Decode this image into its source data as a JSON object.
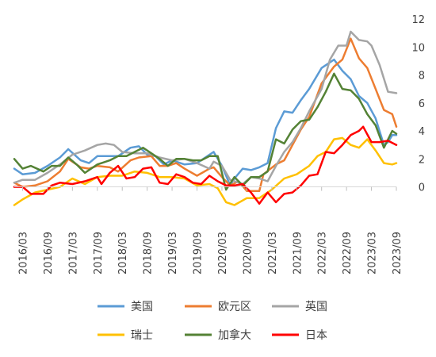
{
  "chart_data": {
    "type": "line",
    "title": "",
    "xlabel": "",
    "ylabel": "",
    "y_axis_side": "right",
    "grid": false,
    "legend_position": "bottom",
    "ylim": [
      -1.5,
      12
    ],
    "yticks": [
      "0",
      "2",
      "4",
      "6",
      "8",
      "10",
      "12"
    ],
    "xtick_labels": [
      "2016/03",
      "2016/09",
      "2017/03",
      "2017/09",
      "2018/03",
      "2018/09",
      "2019/03",
      "2019/09",
      "2020/03",
      "2020/09",
      "2021/03",
      "2021/09",
      "2022/03",
      "2022/09",
      "2023/03",
      "2023/09"
    ],
    "x_start": "2016/01",
    "x_end": "2023/09",
    "series": [
      {
        "name": "美国",
        "color": "#5B9BD5",
        "points": [
          [
            "2016/01",
            1.3
          ],
          [
            "2016/03",
            0.9
          ],
          [
            "2016/06",
            1.0
          ],
          [
            "2016/09",
            1.5
          ],
          [
            "2016/12",
            2.1
          ],
          [
            "2017/02",
            2.7
          ],
          [
            "2017/05",
            1.9
          ],
          [
            "2017/07",
            1.7
          ],
          [
            "2017/09",
            2.2
          ],
          [
            "2017/11",
            2.2
          ],
          [
            "2018/02",
            2.2
          ],
          [
            "2018/05",
            2.8
          ],
          [
            "2018/07",
            2.9
          ],
          [
            "2018/09",
            2.3
          ],
          [
            "2018/11",
            2.2
          ],
          [
            "2019/01",
            1.6
          ],
          [
            "2019/03",
            1.9
          ],
          [
            "2019/06",
            1.6
          ],
          [
            "2019/09",
            1.7
          ],
          [
            "2019/12",
            2.3
          ],
          [
            "2020/01",
            2.5
          ],
          [
            "2020/03",
            1.5
          ],
          [
            "2020/05",
            0.1
          ],
          [
            "2020/06",
            0.6
          ],
          [
            "2020/08",
            1.3
          ],
          [
            "2020/10",
            1.2
          ],
          [
            "2020/12",
            1.4
          ],
          [
            "2021/02",
            1.7
          ],
          [
            "2021/04",
            4.2
          ],
          [
            "2021/06",
            5.4
          ],
          [
            "2021/08",
            5.3
          ],
          [
            "2021/10",
            6.2
          ],
          [
            "2021/12",
            7.0
          ],
          [
            "2022/03",
            8.5
          ],
          [
            "2022/06",
            9.1
          ],
          [
            "2022/08",
            8.3
          ],
          [
            "2022/10",
            7.7
          ],
          [
            "2022/12",
            6.5
          ],
          [
            "2023/02",
            6.0
          ],
          [
            "2023/04",
            4.9
          ],
          [
            "2023/06",
            3.0
          ],
          [
            "2023/07",
            3.2
          ],
          [
            "2023/08",
            3.7
          ],
          [
            "2023/09",
            3.7
          ]
        ]
      },
      {
        "name": "欧元区",
        "color": "#ED7D31",
        "points": [
          [
            "2016/01",
            0.3
          ],
          [
            "2016/03",
            0.0
          ],
          [
            "2016/06",
            0.1
          ],
          [
            "2016/09",
            0.4
          ],
          [
            "2016/12",
            1.1
          ],
          [
            "2017/02",
            2.0
          ],
          [
            "2017/05",
            1.4
          ],
          [
            "2017/07",
            1.3
          ],
          [
            "2017/09",
            1.5
          ],
          [
            "2017/12",
            1.4
          ],
          [
            "2018/02",
            1.1
          ],
          [
            "2018/05",
            1.9
          ],
          [
            "2018/07",
            2.1
          ],
          [
            "2018/10",
            2.2
          ],
          [
            "2018/12",
            1.5
          ],
          [
            "2019/02",
            1.5
          ],
          [
            "2019/04",
            1.7
          ],
          [
            "2019/06",
            1.3
          ],
          [
            "2019/09",
            0.8
          ],
          [
            "2019/12",
            1.3
          ],
          [
            "2020/01",
            1.4
          ],
          [
            "2020/03",
            0.7
          ],
          [
            "2020/05",
            0.1
          ],
          [
            "2020/07",
            0.4
          ],
          [
            "2020/09",
            -0.3
          ],
          [
            "2020/12",
            -0.3
          ],
          [
            "2021/01",
            0.9
          ],
          [
            "2021/04",
            1.6
          ],
          [
            "2021/06",
            1.9
          ],
          [
            "2021/08",
            3.0
          ],
          [
            "2021/10",
            4.1
          ],
          [
            "2021/12",
            5.0
          ],
          [
            "2022/03",
            7.4
          ],
          [
            "2022/06",
            8.6
          ],
          [
            "2022/08",
            9.1
          ],
          [
            "2022/10",
            10.6
          ],
          [
            "2022/12",
            9.2
          ],
          [
            "2023/02",
            8.5
          ],
          [
            "2023/04",
            7.0
          ],
          [
            "2023/06",
            5.5
          ],
          [
            "2023/08",
            5.2
          ],
          [
            "2023/09",
            4.3
          ]
        ]
      },
      {
        "name": "英国",
        "color": "#A5A5A5",
        "points": [
          [
            "2016/01",
            0.3
          ],
          [
            "2016/03",
            0.5
          ],
          [
            "2016/06",
            0.5
          ],
          [
            "2016/09",
            1.0
          ],
          [
            "2016/12",
            1.6
          ],
          [
            "2017/03",
            2.3
          ],
          [
            "2017/06",
            2.6
          ],
          [
            "2017/09",
            3.0
          ],
          [
            "2017/11",
            3.1
          ],
          [
            "2018/01",
            3.0
          ],
          [
            "2018/03",
            2.5
          ],
          [
            "2018/06",
            2.4
          ],
          [
            "2018/09",
            2.4
          ],
          [
            "2018/12",
            2.1
          ],
          [
            "2019/03",
            1.9
          ],
          [
            "2019/06",
            2.0
          ],
          [
            "2019/09",
            1.7
          ],
          [
            "2019/12",
            1.3
          ],
          [
            "2020/01",
            1.8
          ],
          [
            "2020/03",
            1.5
          ],
          [
            "2020/05",
            0.5
          ],
          [
            "2020/08",
            0.2
          ],
          [
            "2020/10",
            0.7
          ],
          [
            "2020/12",
            0.6
          ],
          [
            "2021/02",
            0.4
          ],
          [
            "2021/04",
            1.5
          ],
          [
            "2021/06",
            2.5
          ],
          [
            "2021/08",
            3.2
          ],
          [
            "2021/10",
            4.2
          ],
          [
            "2021/12",
            5.4
          ],
          [
            "2022/03",
            7.0
          ],
          [
            "2022/05",
            9.1
          ],
          [
            "2022/07",
            10.1
          ],
          [
            "2022/09",
            10.1
          ],
          [
            "2022/10",
            11.1
          ],
          [
            "2022/12",
            10.5
          ],
          [
            "2023/02",
            10.4
          ],
          [
            "2023/03",
            10.1
          ],
          [
            "2023/05",
            8.7
          ],
          [
            "2023/07",
            6.8
          ],
          [
            "2023/09",
            6.7
          ]
        ]
      },
      {
        "name": "瑞士",
        "color": "#FFC000",
        "points": [
          [
            "2016/01",
            -1.3
          ],
          [
            "2016/03",
            -0.9
          ],
          [
            "2016/06",
            -0.4
          ],
          [
            "2016/09",
            -0.2
          ],
          [
            "2016/12",
            0.0
          ],
          [
            "2017/03",
            0.6
          ],
          [
            "2017/06",
            0.2
          ],
          [
            "2017/09",
            0.7
          ],
          [
            "2017/12",
            0.8
          ],
          [
            "2018/03",
            0.8
          ],
          [
            "2018/06",
            1.1
          ],
          [
            "2018/09",
            1.0
          ],
          [
            "2018/12",
            0.7
          ],
          [
            "2019/03",
            0.7
          ],
          [
            "2019/06",
            0.6
          ],
          [
            "2019/09",
            0.1
          ],
          [
            "2019/12",
            0.2
          ],
          [
            "2020/02",
            -0.1
          ],
          [
            "2020/04",
            -1.1
          ],
          [
            "2020/06",
            -1.3
          ],
          [
            "2020/09",
            -0.8
          ],
          [
            "2020/12",
            -0.8
          ],
          [
            "2021/03",
            -0.2
          ],
          [
            "2021/06",
            0.6
          ],
          [
            "2021/09",
            0.9
          ],
          [
            "2021/12",
            1.5
          ],
          [
            "2022/02",
            2.2
          ],
          [
            "2022/04",
            2.5
          ],
          [
            "2022/06",
            3.4
          ],
          [
            "2022/08",
            3.5
          ],
          [
            "2022/10",
            3.0
          ],
          [
            "2022/12",
            2.8
          ],
          [
            "2023/02",
            3.4
          ],
          [
            "2023/04",
            2.6
          ],
          [
            "2023/06",
            1.7
          ],
          [
            "2023/08",
            1.6
          ],
          [
            "2023/09",
            1.7
          ]
        ]
      },
      {
        "name": "加拿大",
        "color": "#548235",
        "points": [
          [
            "2016/01",
            2.0
          ],
          [
            "2016/03",
            1.3
          ],
          [
            "2016/05",
            1.5
          ],
          [
            "2016/08",
            1.1
          ],
          [
            "2016/10",
            1.5
          ],
          [
            "2016/12",
            1.5
          ],
          [
            "2017/02",
            2.1
          ],
          [
            "2017/04",
            1.6
          ],
          [
            "2017/06",
            1.0
          ],
          [
            "2017/09",
            1.6
          ],
          [
            "2017/12",
            1.9
          ],
          [
            "2018/02",
            2.2
          ],
          [
            "2018/04",
            2.2
          ],
          [
            "2018/06",
            2.5
          ],
          [
            "2018/08",
            2.8
          ],
          [
            "2018/10",
            2.4
          ],
          [
            "2018/12",
            2.0
          ],
          [
            "2019/02",
            1.5
          ],
          [
            "2019/04",
            2.0
          ],
          [
            "2019/06",
            2.0
          ],
          [
            "2019/08",
            1.9
          ],
          [
            "2019/10",
            1.9
          ],
          [
            "2019/12",
            2.2
          ],
          [
            "2020/02",
            2.2
          ],
          [
            "2020/04",
            -0.2
          ],
          [
            "2020/06",
            0.7
          ],
          [
            "2020/08",
            0.1
          ],
          [
            "2020/10",
            0.7
          ],
          [
            "2020/12",
            0.7
          ],
          [
            "2021/02",
            1.1
          ],
          [
            "2021/04",
            3.4
          ],
          [
            "2021/06",
            3.1
          ],
          [
            "2021/08",
            4.1
          ],
          [
            "2021/10",
            4.7
          ],
          [
            "2021/12",
            4.8
          ],
          [
            "2022/02",
            5.7
          ],
          [
            "2022/04",
            6.8
          ],
          [
            "2022/06",
            8.1
          ],
          [
            "2022/08",
            7.0
          ],
          [
            "2022/10",
            6.9
          ],
          [
            "2022/12",
            6.3
          ],
          [
            "2023/02",
            5.2
          ],
          [
            "2023/04",
            4.4
          ],
          [
            "2023/06",
            2.8
          ],
          [
            "2023/08",
            4.0
          ],
          [
            "2023/09",
            3.8
          ]
        ]
      },
      {
        "name": "日本",
        "color": "#FF0000",
        "points": [
          [
            "2016/01",
            0.0
          ],
          [
            "2016/03",
            0.0
          ],
          [
            "2016/05",
            -0.5
          ],
          [
            "2016/08",
            -0.5
          ],
          [
            "2016/10",
            0.1
          ],
          [
            "2016/12",
            0.3
          ],
          [
            "2017/03",
            0.2
          ],
          [
            "2017/06",
            0.4
          ],
          [
            "2017/09",
            0.7
          ],
          [
            "2017/10",
            0.2
          ],
          [
            "2017/12",
            1.0
          ],
          [
            "2018/02",
            1.5
          ],
          [
            "2018/04",
            0.6
          ],
          [
            "2018/06",
            0.7
          ],
          [
            "2018/08",
            1.3
          ],
          [
            "2018/10",
            1.4
          ],
          [
            "2018/12",
            0.3
          ],
          [
            "2019/02",
            0.2
          ],
          [
            "2019/04",
            0.9
          ],
          [
            "2019/06",
            0.7
          ],
          [
            "2019/08",
            0.3
          ],
          [
            "2019/10",
            0.2
          ],
          [
            "2019/12",
            0.8
          ],
          [
            "2020/02",
            0.4
          ],
          [
            "2020/04",
            0.1
          ],
          [
            "2020/06",
            0.1
          ],
          [
            "2020/08",
            0.2
          ],
          [
            "2020/10",
            -0.4
          ],
          [
            "2020/12",
            -1.2
          ],
          [
            "2021/02",
            -0.4
          ],
          [
            "2021/04",
            -1.1
          ],
          [
            "2021/06",
            -0.5
          ],
          [
            "2021/08",
            -0.4
          ],
          [
            "2021/10",
            0.1
          ],
          [
            "2021/12",
            0.8
          ],
          [
            "2022/02",
            0.9
          ],
          [
            "2022/04",
            2.5
          ],
          [
            "2022/06",
            2.4
          ],
          [
            "2022/08",
            3.0
          ],
          [
            "2022/10",
            3.7
          ],
          [
            "2022/12",
            4.0
          ],
          [
            "2023/01",
            4.3
          ],
          [
            "2023/03",
            3.2
          ],
          [
            "2023/05",
            3.2
          ],
          [
            "2023/07",
            3.3
          ],
          [
            "2023/09",
            3.0
          ]
        ]
      }
    ]
  }
}
